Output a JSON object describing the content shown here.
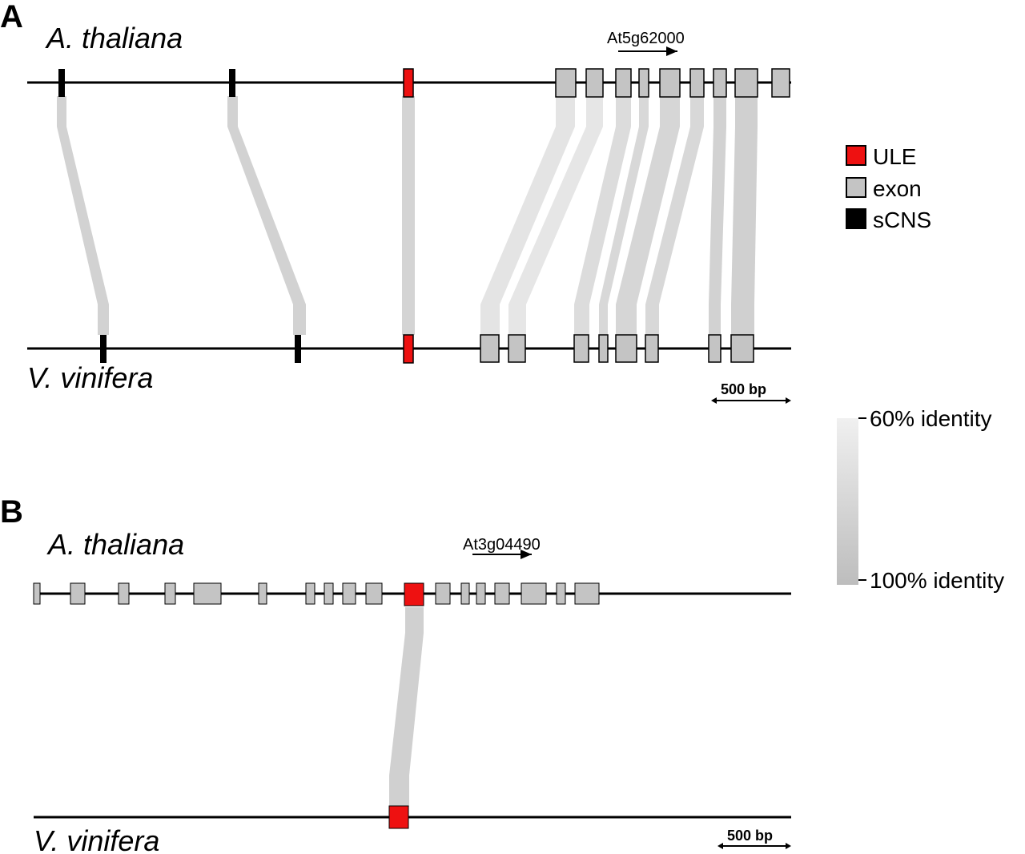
{
  "panels": {
    "a": {
      "letter": "A",
      "top_species": "A. thaliana",
      "bottom_species": "V. vinifera",
      "gene": "At5g62000",
      "scale": "500 bp"
    },
    "b": {
      "letter": "B",
      "top_species": "A. thaliana",
      "bottom_species": "V. vinifera",
      "gene": "At3g04490",
      "scale": "500 bp"
    }
  },
  "legend": {
    "items": [
      {
        "label": "ULE",
        "color": "#ee1111"
      },
      {
        "label": "exon",
        "color": "#c4c4c4"
      },
      {
        "label": "sCNS",
        "color": "#000000"
      }
    ]
  },
  "identity_scale": {
    "top_label": "60% identity",
    "bottom_label": "100% identity",
    "light_color": "#f0f0f0",
    "dark_color": "#bdbdbd"
  },
  "colors": {
    "ule": "#ee1111",
    "exon": "#c4c4c4",
    "scns": "#000000",
    "line": "#000000"
  }
}
